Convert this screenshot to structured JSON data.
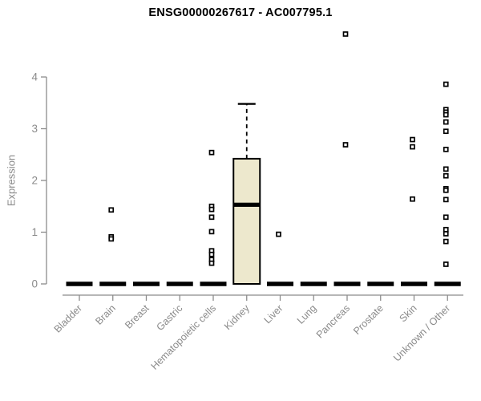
{
  "title": "ENSG00000267617 - AC007795.1",
  "colors": {
    "background": "#ffffff",
    "box_fill": "#EDE8CD",
    "axis": "#8c8c8c",
    "tick_label": "#8a8a8a",
    "ink": "#000000"
  },
  "chart_data": {
    "type": "boxplot",
    "title": "ENSG00000267617 - AC007795.1",
    "xlabel": "",
    "ylabel": "Expression",
    "ylim": [
      0,
      4
    ],
    "yticks": [
      0,
      1,
      2,
      3,
      4
    ],
    "grid": false,
    "legend": "none",
    "categories": [
      "Bladder",
      "Brain",
      "Breast",
      "Gastric",
      "Hematopoietic cells",
      "Kidney",
      "Liver",
      "Lung",
      "Pancreas",
      "Prostate",
      "Skin",
      "Unknown / Other"
    ],
    "boxes": [
      {
        "category": "Bladder",
        "q1": 0,
        "median": 0,
        "q3": 0,
        "whisker_low": 0,
        "whisker_high": 0,
        "outliers": []
      },
      {
        "category": "Brain",
        "q1": 0,
        "median": 0,
        "q3": 0,
        "whisker_low": 0,
        "whisker_high": 0,
        "outliers": [
          1.43,
          0.91,
          0.87
        ]
      },
      {
        "category": "Breast",
        "q1": 0,
        "median": 0,
        "q3": 0,
        "whisker_low": 0,
        "whisker_high": 0,
        "outliers": []
      },
      {
        "category": "Gastric",
        "q1": 0,
        "median": 0,
        "q3": 0,
        "whisker_low": 0,
        "whisker_high": 0,
        "outliers": []
      },
      {
        "category": "Hematopoietic cells",
        "q1": 0,
        "median": 0,
        "q3": 0,
        "whisker_low": 0,
        "whisker_high": 0,
        "outliers": [
          2.54,
          1.5,
          1.44,
          1.29,
          1.01,
          0.64,
          0.57,
          0.47,
          0.4
        ]
      },
      {
        "category": "Kidney",
        "q1": 0,
        "median": 1.53,
        "q3": 2.42,
        "whisker_low": 0,
        "whisker_high": 3.48,
        "outliers": []
      },
      {
        "category": "Liver",
        "q1": 0,
        "median": 0,
        "q3": 0,
        "whisker_low": 0,
        "whisker_high": 0,
        "outliers": [
          0.96
        ]
      },
      {
        "category": "Lung",
        "q1": 0,
        "median": 0,
        "q3": 0,
        "whisker_low": 0,
        "whisker_high": 0,
        "outliers": []
      },
      {
        "category": "Pancreas",
        "q1": 0,
        "median": 0,
        "q3": 0,
        "whisker_low": 0,
        "whisker_high": 0,
        "outliers": [
          4.83,
          2.69
        ]
      },
      {
        "category": "Prostate",
        "q1": 0,
        "median": 0,
        "q3": 0,
        "whisker_low": 0,
        "whisker_high": 0,
        "outliers": []
      },
      {
        "category": "Skin",
        "q1": 0,
        "median": 0,
        "q3": 0,
        "whisker_low": 0,
        "whisker_high": 0,
        "outliers": [
          2.79,
          2.65,
          1.64
        ]
      },
      {
        "category": "Unknown / Other",
        "q1": 0,
        "median": 0,
        "q3": 0,
        "whisker_low": 0,
        "whisker_high": 0,
        "outliers": [
          3.86,
          3.37,
          3.32,
          3.27,
          3.13,
          2.95,
          2.6,
          2.22,
          2.09,
          1.84,
          1.81,
          1.63,
          1.29,
          1.05,
          0.97,
          0.82,
          0.38
        ]
      }
    ]
  }
}
